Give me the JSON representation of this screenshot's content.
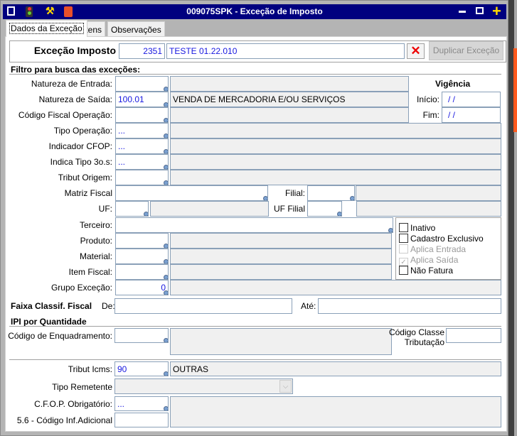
{
  "window": {
    "title": "009075SPK - Exceção de Imposto",
    "toolbar_icons": [
      "menu-icon",
      "traffic-light-icon",
      "wrench-icon",
      "book-icon"
    ],
    "controls": [
      "minimize-icon",
      "maximize-icon",
      "plus-icon"
    ],
    "title_bar_color": "#00007f"
  },
  "tabs": [
    {
      "label": "Dados da Exceção",
      "active": true
    },
    {
      "label": "Itens"
    },
    {
      "label": "Observações"
    }
  ],
  "header": {
    "label": "Exceção Imposto",
    "code": "2351",
    "description": "TESTE 01.22.010",
    "clear_icon": "red-x-icon",
    "duplicate_button": "Duplicar Exceção"
  },
  "filter": {
    "title": "Filtro para busca das exceções:",
    "natureza_entrada": {
      "label": "Natureza de Entrada:",
      "value": "",
      "desc": ""
    },
    "natureza_saida": {
      "label": "Natureza de Saída:",
      "value": "100.01",
      "desc": "VENDA DE MERCADORIA E/OU SERVIÇOS"
    },
    "codigo_fiscal": {
      "label": "Código Fiscal Operação:",
      "value": ""
    },
    "tipo_operacao": {
      "label": "Tipo Operação:",
      "value": "..."
    },
    "indicador_cfop": {
      "label": "Indicador CFOP:",
      "value": "..."
    },
    "indica_tipo": {
      "label": "Indica Tipo 3o.s:",
      "value": "..."
    },
    "tribut_origem": {
      "label": "Tribut Origem:",
      "value": ""
    },
    "matriz_fiscal": {
      "label": "Matriz Fiscal",
      "value": ""
    },
    "filial": {
      "label": "Filial:",
      "value": ""
    },
    "uf": {
      "label": "UF:",
      "value": ""
    },
    "uf_filial": {
      "label": "UF Filial",
      "value": ""
    },
    "terceiro": {
      "label": "Terceiro:",
      "value": ""
    },
    "produto": {
      "label": "Produto:",
      "value": ""
    },
    "material": {
      "label": "Material:",
      "value": ""
    },
    "item_fiscal": {
      "label": "Item Fiscal:",
      "value": ""
    },
    "grupo_excecao": {
      "label": "Grupo Exceção:",
      "value": "0"
    }
  },
  "vigencia": {
    "title": "Vigência",
    "inicio_label": "Início:",
    "inicio": "/ /",
    "fim_label": "Fim:",
    "fim": "/ /"
  },
  "checkboxes": [
    {
      "label": "Inativo",
      "checked": false
    },
    {
      "label": "Cadastro Exclusivo",
      "checked": false
    },
    {
      "label": "Aplica Entrada",
      "checked": false,
      "disabled": true
    },
    {
      "label": "Aplica Saída",
      "checked": true,
      "disabled": true
    },
    {
      "label": "Não Fatura",
      "checked": false
    }
  ],
  "faixa": {
    "title": "Faixa Classif. Fiscal",
    "de_label": "De:",
    "de": "",
    "ate_label": "Até:",
    "ate": ""
  },
  "ipi": {
    "title": "IPI por Quantidade",
    "enquadramento_label": "Código de Enquadramento:",
    "enquadramento": "",
    "classe_label_1": "Código Classe",
    "classe_label_2": "Tributação",
    "classe": ""
  },
  "icms": {
    "tribut_label": "Tribut Icms:",
    "tribut": "90",
    "tribut_desc": "OUTRAS",
    "remetente_label": "Tipo Remetente",
    "remetente": "",
    "cfop_label": "C.F.O.P. Obrigatório:",
    "cfop": "...",
    "inf_label": "5.6 - Código Inf.Adicional",
    "inf": ""
  }
}
